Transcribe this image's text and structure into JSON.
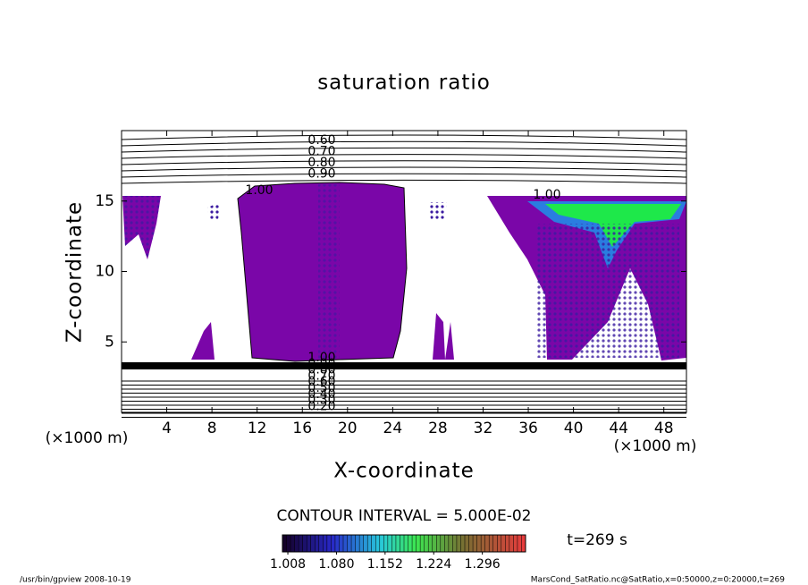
{
  "chart_data": {
    "type": "contour",
    "title": "saturation ratio",
    "xlabel": "X-coordinate",
    "ylabel": "Z-coordinate",
    "xunit_label": "(×1000 m)",
    "xlim": [
      0,
      50
    ],
    "xticks": [
      4,
      8,
      12,
      16,
      20,
      24,
      28,
      32,
      36,
      40,
      44,
      48
    ],
    "ylim": [
      0,
      20
    ],
    "yticks": [
      5,
      10,
      15
    ],
    "contour_labels_top": [
      "0.60",
      "0.70",
      "0.80",
      "0.90"
    ],
    "contour_labels_mid": [
      "1.00",
      "1.00"
    ],
    "contour_labels_bottom": [
      "1.00",
      "0.90",
      "0.80",
      "0.70",
      "0.60",
      "0.50",
      "0.40",
      "0.30",
      "0.20"
    ],
    "contour_interval": "CONTOUR INTERVAL = 5.000E-02",
    "colorbar": {
      "lim": [
        1.0,
        1.36
      ],
      "ticks": [
        {
          "value": 1.008,
          "label": "1.008"
        },
        {
          "value": 1.08,
          "label": "1.080"
        },
        {
          "value": 1.152,
          "label": "1.152"
        },
        {
          "value": 1.224,
          "label": "1.224"
        },
        {
          "value": 1.296,
          "label": "1.296"
        }
      ]
    },
    "time_label": "t=269 s",
    "footer_left": "/usr/bin/gpview  2008-10-19",
    "footer_right": "MarsCond_SatRatio.nc@SatRatio,x=0:50000,z=0:20000,t=269"
  }
}
